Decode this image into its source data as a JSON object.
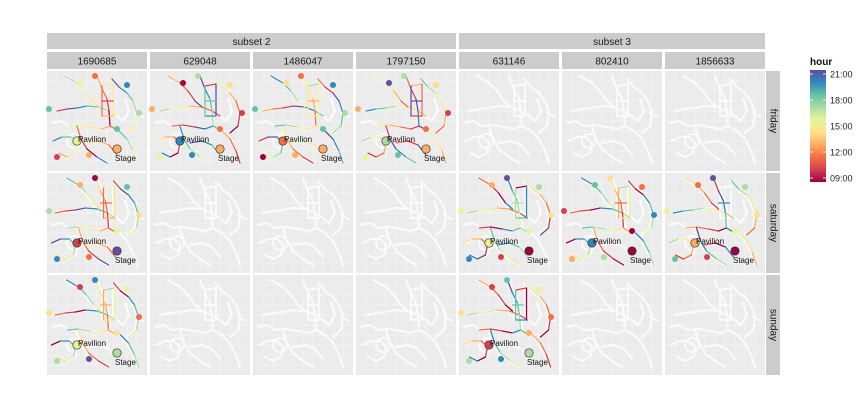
{
  "chart_data": {
    "type": "faceted-map",
    "column_groups": [
      {
        "label": "subset 2",
        "columns": [
          "1690685",
          "629048",
          "1486047",
          "1797150"
        ]
      },
      {
        "label": "subset 3",
        "columns": [
          "631146",
          "802410",
          "1856633"
        ]
      }
    ],
    "rows": [
      "friday",
      "saturday",
      "sunday"
    ],
    "landmarks": [
      "Pavilion",
      "Stage"
    ],
    "legend": {
      "title": "hour",
      "ticks": [
        "21:00",
        "18:00",
        "15:00",
        "12:00",
        "09:00"
      ],
      "colors": [
        "#5e4fa2",
        "#3288bd",
        "#66c2a5",
        "#abdda4",
        "#e6f598",
        "#fee08b",
        "#fdae61",
        "#f46d43",
        "#d53e4f",
        "#9e0142"
      ],
      "placement": "right"
    },
    "active_panels": [
      {
        "row": "friday",
        "column": "1690685",
        "hours_span": [
          9,
          21
        ]
      },
      {
        "row": "friday",
        "column": "629048",
        "hours_span": [
          9,
          21
        ]
      },
      {
        "row": "friday",
        "column": "1486047",
        "hours_span": [
          9,
          21
        ]
      },
      {
        "row": "friday",
        "column": "1797150",
        "hours_span": [
          9,
          21
        ]
      },
      {
        "row": "saturday",
        "column": "1690685",
        "hours_span": [
          9,
          21
        ]
      },
      {
        "row": "saturday",
        "column": "631146",
        "hours_span": [
          9,
          21
        ]
      },
      {
        "row": "saturday",
        "column": "802410",
        "hours_span": [
          9,
          21
        ]
      },
      {
        "row": "saturday",
        "column": "1856633",
        "hours_span": [
          9,
          21
        ]
      },
      {
        "row": "sunday",
        "column": "1690685",
        "hours_span": [
          9,
          21
        ]
      },
      {
        "row": "sunday",
        "column": "631146",
        "hours_span": [
          9,
          21
        ]
      }
    ],
    "grid": true
  }
}
